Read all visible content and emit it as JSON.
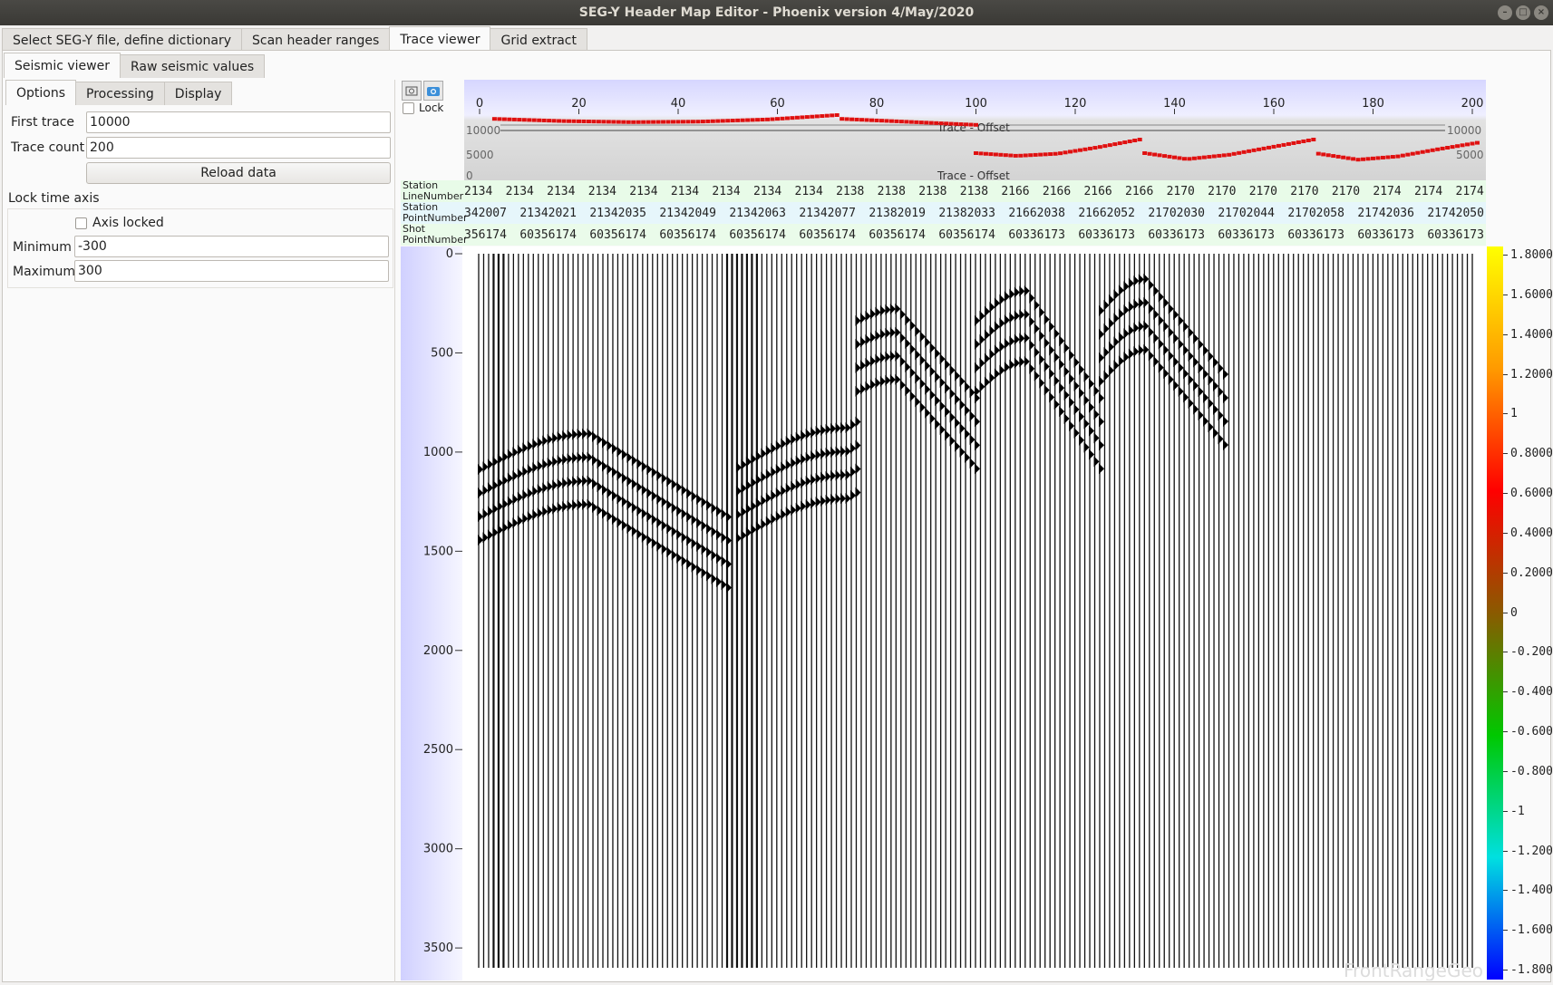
{
  "window": {
    "title": "SEG-Y Header Map Editor - Phoenix version 4/May/2020"
  },
  "main_tabs": [
    {
      "label": "Select SEG-Y file, define dictionary",
      "active": false
    },
    {
      "label": "Scan header ranges",
      "active": false
    },
    {
      "label": "Trace viewer",
      "active": true
    },
    {
      "label": "Grid extract",
      "active": false
    }
  ],
  "sub_tabs": [
    {
      "label": "Seismic viewer",
      "active": true
    },
    {
      "label": "Raw seismic values",
      "active": false
    }
  ],
  "option_tabs": [
    {
      "label": "Options",
      "active": true
    },
    {
      "label": "Processing",
      "active": false
    },
    {
      "label": "Display",
      "active": false
    }
  ],
  "options": {
    "first_trace_label": "First trace",
    "first_trace_value": "10000",
    "trace_count_label": "Trace count",
    "trace_count_value": "200",
    "reload_label": "Reload data",
    "lock_time_axis_label": "Lock time axis",
    "axis_locked_label": "Axis locked",
    "axis_locked": false,
    "minimum_label": "Minimum",
    "minimum_value": "-300",
    "maximum_label": "Maximum",
    "maximum_value": "300"
  },
  "toolbar": {
    "lock_label": "Lock",
    "lock_checked": false,
    "icons": [
      "zoom-reset-icon",
      "camera-icon"
    ]
  },
  "header_plot": {
    "series_label": "Trace - Offset",
    "series_label_lower": "Trace - Offset",
    "y_top_left": "10000",
    "y_mid_left": "5000",
    "y_bot_left": "0",
    "y_top_right": "10000",
    "y_mid_right": "5000",
    "x_ticks": [
      "0",
      "20",
      "40",
      "60",
      "80",
      "100",
      "120",
      "140",
      "160",
      "180",
      "200"
    ],
    "offset_segments": [
      {
        "x": [
          3,
          72
        ],
        "offset": [
          9800,
          9400,
          9200,
          9300,
          9700,
          10500
        ]
      },
      {
        "x": [
          73,
          100
        ],
        "offset": [
          9800,
          8700
        ]
      },
      {
        "x": [
          100,
          133
        ],
        "offset": [
          3500,
          3000,
          3400,
          4600,
          6000
        ]
      },
      {
        "x": [
          134,
          168
        ],
        "offset": [
          3500,
          2400,
          3200,
          4600,
          6000
        ]
      },
      {
        "x": [
          169,
          201
        ],
        "offset": [
          3400,
          2300,
          2900,
          4200,
          5400
        ]
      }
    ]
  },
  "header_rows": [
    {
      "label_line1": "Station",
      "label_line2": "LineNumber",
      "values": [
        "2134",
        "2134",
        "2134",
        "2134",
        "2134",
        "2134",
        "2134",
        "2134",
        "2134",
        "2138",
        "2138",
        "2138",
        "2138",
        "2166",
        "2166",
        "2166",
        "2166",
        "2170",
        "2170",
        "2170",
        "2170",
        "2170",
        "2174",
        "2174",
        "2174"
      ],
      "bg": "#e8fbe8"
    },
    {
      "label_line1": "Station",
      "label_line2": "PointNumber",
      "values": [
        "342007",
        "21342021",
        "21342035",
        "21342049",
        "21342063",
        "21342077",
        "21382019",
        "21382033",
        "21662038",
        "21662052",
        "21702030",
        "21702044",
        "21702058",
        "21742036",
        "21742050"
      ],
      "bg": "#e6f6fb"
    },
    {
      "label_line1": "Shot",
      "label_line2": "PointNumber",
      "values": [
        "356174",
        "60356174",
        "60356174",
        "60356174",
        "60356174",
        "60356174",
        "60356174",
        "60356174",
        "60336173",
        "60336173",
        "60336173",
        "60336173",
        "60336173",
        "60336173",
        "60336173"
      ],
      "bg": "#eafbea"
    }
  ],
  "seismic": {
    "trace_count": 200,
    "time_ticks": [
      "0",
      "500",
      "1000",
      "1500",
      "2000",
      "2500",
      "3000",
      "3500"
    ],
    "time_max": 3600,
    "dim_trace_indices": [
      3,
      4,
      5,
      50,
      51,
      52,
      53,
      54,
      55,
      56
    ],
    "first_breaks": [
      {
        "trace_from": 0,
        "trace_to": 50,
        "t_start": 1060,
        "t_peak": 880,
        "peak_trace": 22,
        "t_end": 1300
      },
      {
        "trace_from": 52,
        "trace_to": 76,
        "t_start": 1050,
        "t_peak": 850,
        "peak_trace": 74,
        "t_end": 820
      },
      {
        "trace_from": 76,
        "trace_to": 100,
        "t_start": 310,
        "t_peak": 250,
        "peak_trace": 84,
        "t_end": 700
      },
      {
        "trace_from": 100,
        "trace_to": 125,
        "t_start": 310,
        "t_peak": 160,
        "peak_trace": 110,
        "t_end": 700
      },
      {
        "trace_from": 125,
        "trace_to": 150,
        "t_start": 260,
        "t_peak": 100,
        "peak_trace": 134,
        "t_end": 580
      }
    ]
  },
  "colorbar": {
    "labels": [
      "1.8000",
      "1.6000",
      "1.4000",
      "1.2000",
      "1",
      "0.8000",
      "0.6000",
      "0.4000",
      "0.2000",
      "0",
      "-0.2000",
      "-0.4000",
      "-0.6000",
      "-0.8000",
      "-1",
      "-1.2000",
      "-1.4000",
      "-1.6000",
      "-1.8000"
    ],
    "stops": [
      "#ffff00",
      "#ff9a00",
      "#ff0000",
      "#8a5a00",
      "#00c800",
      "#00e0e0",
      "#0000ff"
    ]
  },
  "watermark": "FrontRangeGeo"
}
